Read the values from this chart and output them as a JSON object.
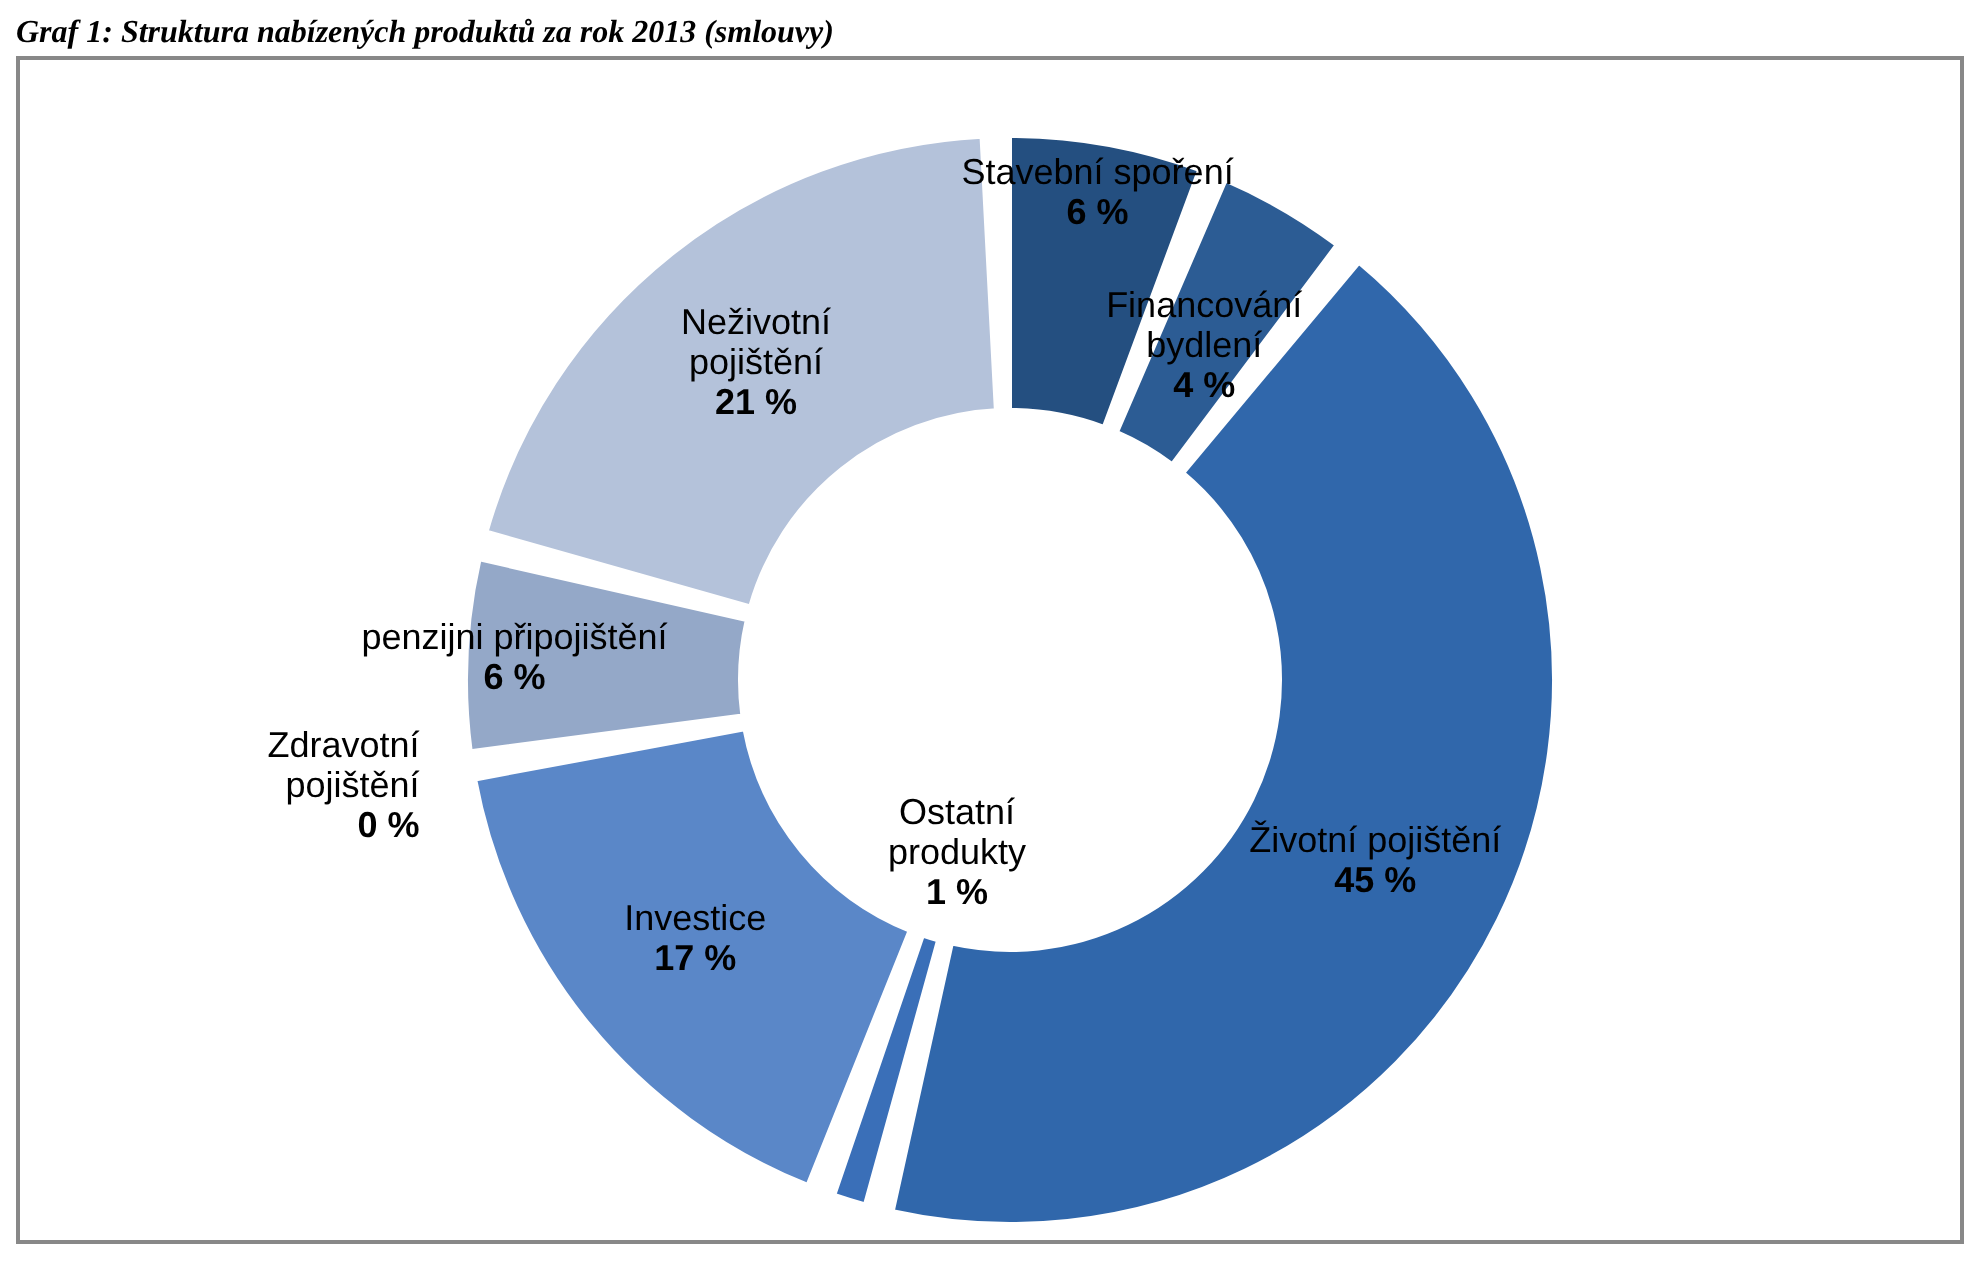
{
  "chart_data": {
    "type": "donut",
    "title": "Graf 1: Struktura nabízených produktů za rok 2013 (smlouvy)",
    "categories": [
      "Stavební spoření",
      "Financování bydlení",
      "Životní pojištění",
      "Ostatní produkty",
      "Investice",
      "Zdravotní pojištění",
      "penzijni připojištění",
      "Neživotní pojištění"
    ],
    "values": [
      6,
      4,
      45,
      1,
      17,
      0,
      6,
      21
    ],
    "value_labels": [
      "6 %",
      "4 %",
      "45 %",
      "1 %",
      "17 %",
      "0 %",
      "6 %",
      "21 %"
    ],
    "colors": [
      "#244f80",
      "#2c5c94",
      "#3067ab",
      "#3a6fb8",
      "#5a87c8",
      "#7f9bc4",
      "#94a8c8",
      "#b4c2da"
    ],
    "legend": false
  }
}
